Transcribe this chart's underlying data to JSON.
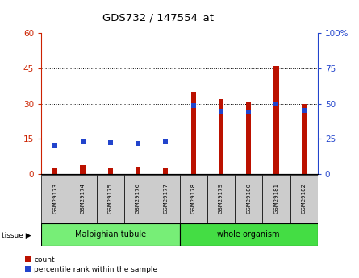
{
  "title": "GDS732 / 147554_at",
  "samples": [
    "GSM29173",
    "GSM29174",
    "GSM29175",
    "GSM29176",
    "GSM29177",
    "GSM29178",
    "GSM29179",
    "GSM29180",
    "GSM29181",
    "GSM29182"
  ],
  "count_values": [
    2.5,
    3.5,
    2.5,
    3.0,
    2.5,
    35.0,
    32.0,
    30.5,
    46.0,
    30.0
  ],
  "percentile_values": [
    20.0,
    23.0,
    22.0,
    21.5,
    22.5,
    48.5,
    44.5,
    44.0,
    49.5,
    45.0
  ],
  "tissue_groups": [
    {
      "label": "Malpighian tubule",
      "start": 0,
      "end": 5,
      "color": "#77ee77"
    },
    {
      "label": "whole organism",
      "start": 5,
      "end": 10,
      "color": "#44dd44"
    }
  ],
  "ylim_left": [
    0,
    60
  ],
  "ylim_right": [
    0,
    100
  ],
  "yticks_left": [
    0,
    15,
    30,
    45,
    60
  ],
  "yticks_right": [
    0,
    25,
    50,
    75,
    100
  ],
  "ytick_labels_left": [
    "0",
    "15",
    "30",
    "45",
    "60"
  ],
  "ytick_labels_right": [
    "0",
    "25",
    "50",
    "75",
    "100%"
  ],
  "bar_color": "#bb1100",
  "dot_color": "#2244cc",
  "bar_width": 0.18,
  "dot_size": 18,
  "background_color": "#ffffff",
  "legend_count_label": "count",
  "legend_pct_label": "percentile rank within the sample",
  "tissue_label": "tissue",
  "left_tick_color": "#cc2200",
  "right_tick_color": "#2244cc"
}
